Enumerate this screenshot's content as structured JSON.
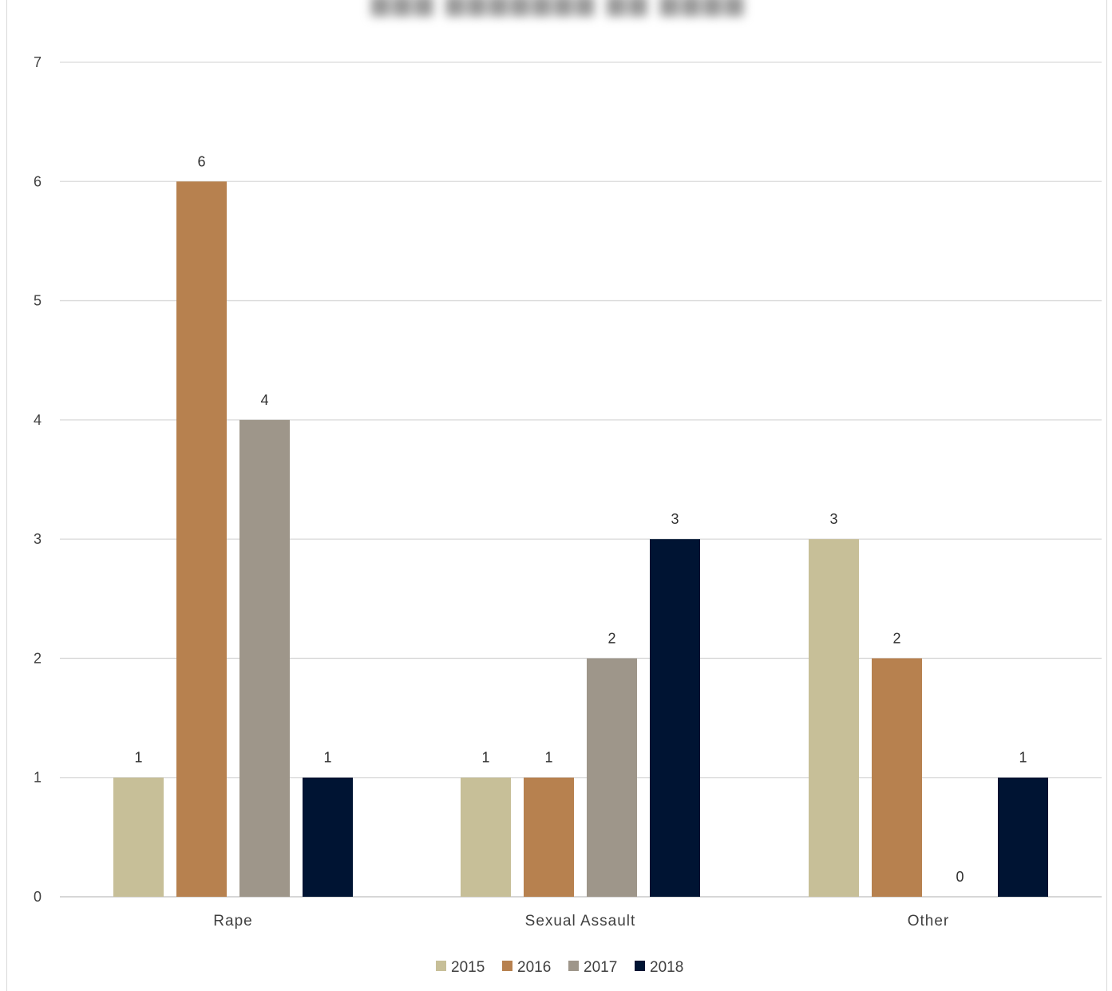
{
  "chart_data": {
    "type": "bar",
    "title": "",
    "xlabel": "",
    "ylabel": "",
    "ylim": [
      0,
      7
    ],
    "yticks": [
      0,
      1,
      2,
      3,
      4,
      5,
      6,
      7
    ],
    "grid": true,
    "legend_position": "bottom",
    "categories": [
      "Rape",
      "Sexual Assault",
      "Other"
    ],
    "series": [
      {
        "name": "2015",
        "color": "#c7bf98",
        "values": [
          1,
          1,
          3
        ]
      },
      {
        "name": "2016",
        "color": "#b7814f",
        "values": [
          6,
          1,
          2
        ]
      },
      {
        "name": "2017",
        "color": "#9e968a",
        "values": [
          4,
          2,
          0
        ]
      },
      {
        "name": "2018",
        "color": "#001433",
        "values": [
          1,
          3,
          1
        ]
      }
    ],
    "data_labels": true
  }
}
